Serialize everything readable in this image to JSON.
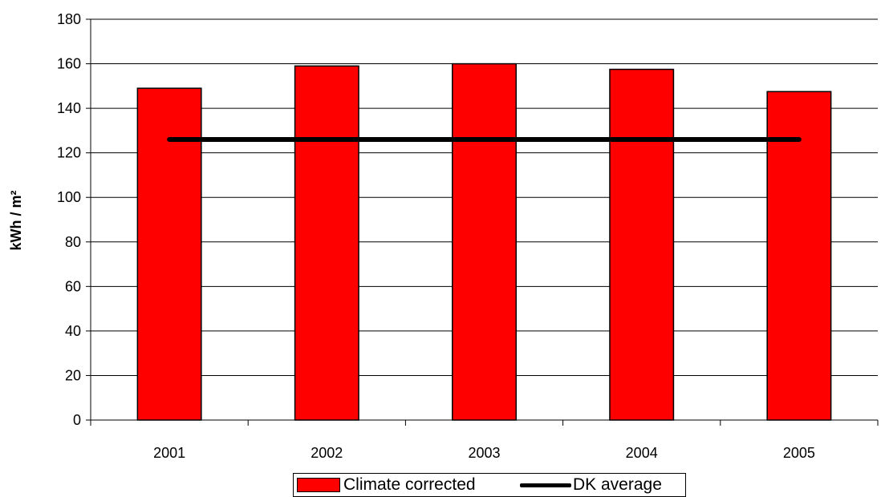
{
  "chart_data": {
    "type": "bar",
    "categories": [
      "2001",
      "2002",
      "2003",
      "2004",
      "2005"
    ],
    "series": [
      {
        "name": "Climate corrected",
        "type": "bar",
        "values": [
          149,
          159,
          160,
          157.5,
          147.5
        ],
        "color": "#ff0000"
      },
      {
        "name": "DK average",
        "type": "line",
        "values": [
          126,
          126,
          126,
          126,
          126
        ],
        "color": "#000000"
      }
    ],
    "title": "",
    "xlabel": "",
    "ylabel": "kWh / m²",
    "ylim": [
      0,
      180
    ],
    "yticks": [
      0,
      20,
      40,
      60,
      80,
      100,
      120,
      140,
      160,
      180
    ],
    "grid": true,
    "legend_position": "bottom"
  }
}
